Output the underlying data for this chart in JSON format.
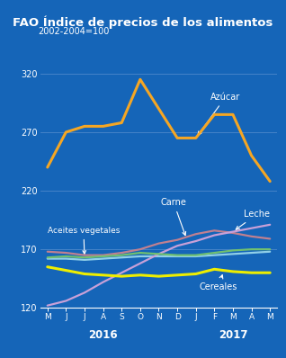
{
  "title": "FAO Índice de precios de los alimentos",
  "subtitle": "2002-2004=100",
  "x_labels": [
    "M",
    "J",
    "J",
    "A",
    "S",
    "O",
    "N",
    "D",
    "J",
    "F",
    "M",
    "A",
    "M"
  ],
  "ylim": [
    120,
    340
  ],
  "yticks": [
    120,
    170,
    220,
    270,
    320
  ],
  "bg_color": "#1565b8",
  "title_bg": "#1a237e",
  "title_color": "#ffffff",
  "grid_color": "#5b8fcf",
  "azucar": [
    240,
    270,
    275,
    275,
    278,
    315,
    290,
    265,
    265,
    285,
    285,
    250,
    228
  ],
  "azucar_color": "#f5a623",
  "carne": [
    168,
    167,
    165,
    165,
    167,
    170,
    175,
    178,
    183,
    186,
    184,
    181,
    179
  ],
  "carne_color": "#c08090",
  "leche": [
    122,
    126,
    133,
    142,
    150,
    158,
    166,
    173,
    177,
    182,
    185,
    188,
    191
  ],
  "leche_color": "#c8a0d8",
  "aceites": [
    163,
    164,
    163,
    164,
    165,
    167,
    166,
    165,
    165,
    167,
    169,
    170,
    170
  ],
  "aceites_color": "#70c070",
  "cereales": [
    155,
    152,
    149,
    148,
    147,
    148,
    147,
    148,
    149,
    153,
    151,
    150,
    150
  ],
  "cereales_color": "#eeee00",
  "fatsoil": [
    162,
    162,
    161,
    162,
    163,
    164,
    164,
    164,
    164,
    165,
    166,
    167,
    168
  ],
  "fatsoil_color": "#90d0e8"
}
